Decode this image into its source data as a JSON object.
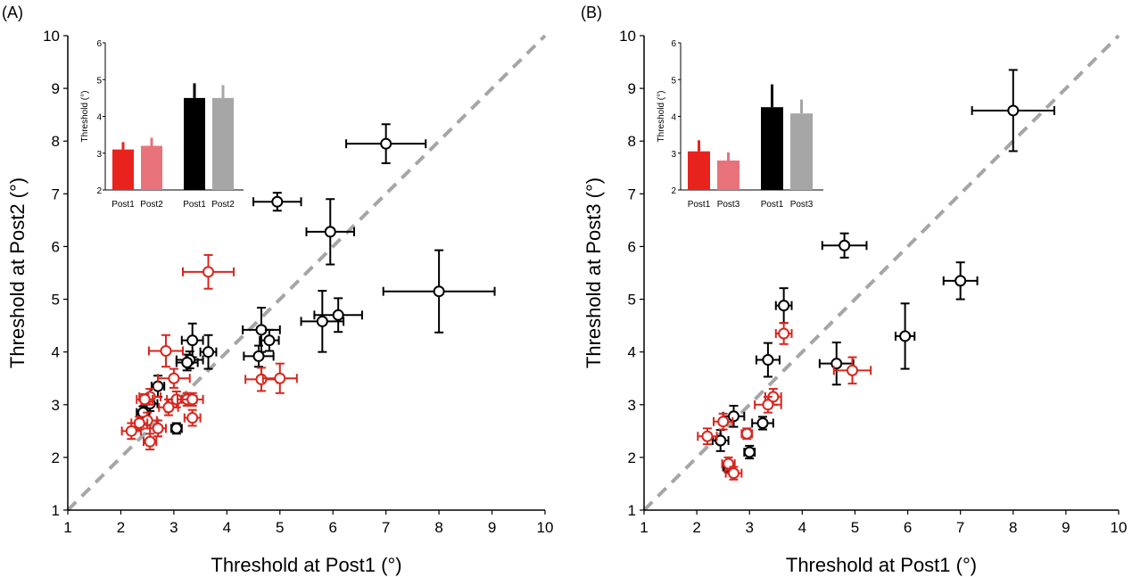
{
  "colors": {
    "open_black": "#000000",
    "open_red": "#d7261e",
    "identity_line": "#a6a6a6",
    "bar_red": "#e8231e",
    "bar_pink": "#e8737a",
    "bar_black": "#000000",
    "bar_gray": "#a6a6a6"
  },
  "chart_data": [
    {
      "type": "scatter",
      "panel_label": "(A)",
      "xlabel": "Threshold at Post1 (°)",
      "ylabel": "Threshold at Post2 (°)",
      "xlim": [
        1,
        10
      ],
      "ylim": [
        1,
        10
      ],
      "xticks": [
        "1",
        "2",
        "3",
        "4",
        "5",
        "6",
        "7",
        "8",
        "9",
        "10"
      ],
      "yticks": [
        "1",
        "2",
        "3",
        "4",
        "5",
        "6",
        "7",
        "8",
        "9",
        "10"
      ],
      "identity_line": true,
      "series": [
        {
          "color_key": "open_black",
          "points": [
            {
              "x": 7.0,
              "y": 7.95,
              "xerr": 0.75,
              "yerr": 0.37
            },
            {
              "x": 4.95,
              "y": 6.85,
              "xerr": 0.45,
              "yerr": 0.17
            },
            {
              "x": 5.95,
              "y": 6.28,
              "xerr": 0.45,
              "yerr": 0.62
            },
            {
              "x": 8.0,
              "y": 5.15,
              "xerr": 1.05,
              "yerr": 0.78
            },
            {
              "x": 6.1,
              "y": 4.7,
              "xerr": 0.45,
              "yerr": 0.32
            },
            {
              "x": 5.8,
              "y": 4.58,
              "xerr": 0.4,
              "yerr": 0.58
            },
            {
              "x": 4.65,
              "y": 4.42,
              "xerr": 0.35,
              "yerr": 0.42
            },
            {
              "x": 4.8,
              "y": 4.22,
              "xerr": 0.18,
              "yerr": 0.2
            },
            {
              "x": 4.6,
              "y": 3.92,
              "xerr": 0.28,
              "yerr": 0.2
            },
            {
              "x": 3.35,
              "y": 4.22,
              "xerr": 0.2,
              "yerr": 0.32
            },
            {
              "x": 3.65,
              "y": 4.0,
              "xerr": 0.15,
              "yerr": 0.32
            },
            {
              "x": 3.3,
              "y": 3.85,
              "xerr": 0.25,
              "yerr": 0.16
            },
            {
              "x": 3.25,
              "y": 3.8,
              "xerr": 0.2,
              "yerr": 0.15
            },
            {
              "x": 2.7,
              "y": 3.35,
              "xerr": 0.12,
              "yerr": 0.2
            },
            {
              "x": 2.55,
              "y": 3.02,
              "xerr": 0.14,
              "yerr": 0.14
            },
            {
              "x": 2.42,
              "y": 2.85,
              "xerr": 0.12,
              "yerr": 0.12
            },
            {
              "x": 3.05,
              "y": 2.55,
              "xerr": 0.1,
              "yerr": 0.1
            }
          ]
        },
        {
          "color_key": "open_red",
          "points": [
            {
              "x": 3.65,
              "y": 5.52,
              "xerr": 0.48,
              "yerr": 0.32
            },
            {
              "x": 2.85,
              "y": 4.02,
              "xerr": 0.32,
              "yerr": 0.3
            },
            {
              "x": 4.65,
              "y": 3.48,
              "xerr": 0.3,
              "yerr": 0.22
            },
            {
              "x": 5.0,
              "y": 3.5,
              "xerr": 0.32,
              "yerr": 0.28
            },
            {
              "x": 3.0,
              "y": 3.5,
              "xerr": 0.3,
              "yerr": 0.18
            },
            {
              "x": 2.55,
              "y": 3.15,
              "xerr": 0.2,
              "yerr": 0.15
            },
            {
              "x": 2.45,
              "y": 3.1,
              "xerr": 0.15,
              "yerr": 0.1
            },
            {
              "x": 3.05,
              "y": 3.1,
              "xerr": 0.18,
              "yerr": 0.15
            },
            {
              "x": 3.25,
              "y": 3.1,
              "xerr": 0.18,
              "yerr": 0.12
            },
            {
              "x": 3.35,
              "y": 3.1,
              "xerr": 0.2,
              "yerr": 0.12
            },
            {
              "x": 2.9,
              "y": 2.95,
              "xerr": 0.18,
              "yerr": 0.15
            },
            {
              "x": 3.35,
              "y": 2.75,
              "xerr": 0.15,
              "yerr": 0.15
            },
            {
              "x": 2.5,
              "y": 2.7,
              "xerr": 0.18,
              "yerr": 0.15
            },
            {
              "x": 2.35,
              "y": 2.65,
              "xerr": 0.15,
              "yerr": 0.12
            },
            {
              "x": 2.7,
              "y": 2.55,
              "xerr": 0.15,
              "yerr": 0.15
            },
            {
              "x": 2.2,
              "y": 2.5,
              "xerr": 0.18,
              "yerr": 0.15
            },
            {
              "x": 2.55,
              "y": 2.3,
              "xerr": 0.12,
              "yerr": 0.15
            }
          ]
        }
      ],
      "inset": {
        "type": "bar",
        "ylabel": "Threshold (°)",
        "ylim": [
          2,
          6
        ],
        "yticks": [
          "2",
          "3",
          "4",
          "5",
          "6"
        ],
        "bars": [
          {
            "label": "Post1",
            "value": 3.1,
            "err": 0.2,
            "color_key": "bar_red",
            "group": 0
          },
          {
            "label": "Post2",
            "value": 3.2,
            "err": 0.22,
            "color_key": "bar_pink",
            "group": 0
          },
          {
            "label": "Post1",
            "value": 4.5,
            "err": 0.4,
            "color_key": "bar_black",
            "group": 1
          },
          {
            "label": "Post2",
            "value": 4.5,
            "err": 0.35,
            "color_key": "bar_gray",
            "group": 1
          }
        ]
      }
    },
    {
      "type": "scatter",
      "panel_label": "(B)",
      "xlabel": "Threshold at Post1 (°)",
      "ylabel": "Threshold at Post3 (°)",
      "xlim": [
        1,
        10
      ],
      "ylim": [
        1,
        10
      ],
      "xticks": [
        "1",
        "2",
        "3",
        "4",
        "5",
        "6",
        "7",
        "8",
        "9",
        "10"
      ],
      "yticks": [
        "1",
        "2",
        "3",
        "4",
        "5",
        "6",
        "7",
        "8",
        "9",
        "10"
      ],
      "identity_line": true,
      "series": [
        {
          "color_key": "open_black",
          "points": [
            {
              "x": 8.0,
              "y": 8.58,
              "xerr": 0.78,
              "yerr": 0.77
            },
            {
              "x": 4.8,
              "y": 6.02,
              "xerr": 0.42,
              "yerr": 0.23
            },
            {
              "x": 7.0,
              "y": 5.35,
              "xerr": 0.32,
              "yerr": 0.35
            },
            {
              "x": 5.95,
              "y": 4.3,
              "xerr": 0.18,
              "yerr": 0.62
            },
            {
              "x": 4.65,
              "y": 3.78,
              "xerr": 0.32,
              "yerr": 0.4
            },
            {
              "x": 3.65,
              "y": 4.88,
              "xerr": 0.15,
              "yerr": 0.33
            },
            {
              "x": 3.35,
              "y": 3.85,
              "xerr": 0.22,
              "yerr": 0.32
            },
            {
              "x": 3.25,
              "y": 2.65,
              "xerr": 0.2,
              "yerr": 0.12
            },
            {
              "x": 2.7,
              "y": 2.78,
              "xerr": 0.2,
              "yerr": 0.2
            },
            {
              "x": 2.45,
              "y": 2.32,
              "xerr": 0.15,
              "yerr": 0.2
            },
            {
              "x": 3.0,
              "y": 2.1,
              "xerr": 0.1,
              "yerr": 0.12
            },
            {
              "x": 2.6,
              "y": 1.82,
              "xerr": 0.1,
              "yerr": 0.1
            }
          ]
        },
        {
          "color_key": "open_red",
          "points": [
            {
              "x": 4.95,
              "y": 3.65,
              "xerr": 0.35,
              "yerr": 0.25
            },
            {
              "x": 3.65,
              "y": 4.35,
              "xerr": 0.15,
              "yerr": 0.2
            },
            {
              "x": 3.45,
              "y": 3.15,
              "xerr": 0.15,
              "yerr": 0.15
            },
            {
              "x": 3.35,
              "y": 3.0,
              "xerr": 0.25,
              "yerr": 0.15
            },
            {
              "x": 2.5,
              "y": 2.68,
              "xerr": 0.18,
              "yerr": 0.15
            },
            {
              "x": 2.95,
              "y": 2.45,
              "xerr": 0.1,
              "yerr": 0.1
            },
            {
              "x": 2.2,
              "y": 2.4,
              "xerr": 0.18,
              "yerr": 0.15
            },
            {
              "x": 2.6,
              "y": 1.88,
              "xerr": 0.12,
              "yerr": 0.12
            },
            {
              "x": 2.7,
              "y": 1.7,
              "xerr": 0.15,
              "yerr": 0.12
            }
          ]
        }
      ],
      "inset": {
        "type": "bar",
        "ylabel": "Threshold (°)",
        "ylim": [
          2,
          6
        ],
        "yticks": [
          "2",
          "3",
          "4",
          "5",
          "6"
        ],
        "bars": [
          {
            "label": "Post1",
            "value": 3.05,
            "err": 0.3,
            "color_key": "bar_red",
            "group": 0
          },
          {
            "label": "Post3",
            "value": 2.8,
            "err": 0.22,
            "color_key": "bar_pink",
            "group": 0
          },
          {
            "label": "Post1",
            "value": 4.25,
            "err": 0.62,
            "color_key": "bar_black",
            "group": 1
          },
          {
            "label": "Post3",
            "value": 4.08,
            "err": 0.38,
            "color_key": "bar_gray",
            "group": 1
          }
        ]
      }
    }
  ]
}
